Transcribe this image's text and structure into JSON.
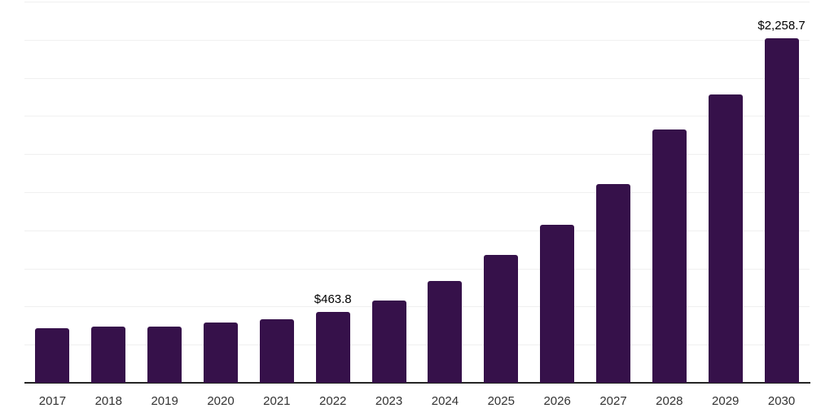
{
  "chart_data": {
    "type": "bar",
    "categories": [
      "2017",
      "2018",
      "2019",
      "2020",
      "2021",
      "2022",
      "2023",
      "2024",
      "2025",
      "2026",
      "2027",
      "2028",
      "2029",
      "2030"
    ],
    "values": [
      359,
      366,
      371,
      393,
      418,
      463.8,
      542,
      667,
      838,
      1035,
      1305,
      1661,
      1892,
      2258.7
    ],
    "data_labels": {
      "2022": "$463.8",
      "2030": "$2,258.7"
    },
    "title": "",
    "xlabel": "",
    "ylabel": "",
    "ylim": [
      0,
      2500
    ],
    "gridline_step": 250,
    "grid_on": true,
    "legend": "none",
    "colors": {
      "bar": "#36114a",
      "gridline": "#f0f0f0",
      "axis_line": "#262626",
      "x_tick_label": "#333333",
      "value_label": "#000000",
      "background": "#ffffff"
    }
  }
}
